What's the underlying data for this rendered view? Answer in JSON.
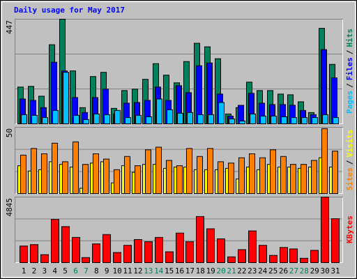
{
  "chart_data": [
    {
      "type": "bar",
      "title": "Daily usage for May 2017",
      "ylim": [
        0,
        447
      ],
      "yticks": [
        447
      ],
      "grid": true,
      "series": [
        {
          "name": "Pages",
          "color": "#00c0ff",
          "values": [
            39,
            36,
            27,
            57,
            220,
            36,
            18,
            42,
            39,
            57,
            27,
            36,
            30,
            106,
            60,
            45,
            48,
            39,
            39,
            91,
            21,
            12,
            42,
            33,
            33,
            30,
            27,
            27,
            27,
            39,
            27
          ]
        },
        {
          "name": "Files",
          "color": "#0000ff",
          "values": [
            106,
            100,
            69,
            263,
            226,
            112,
            48,
            112,
            148,
            42,
            88,
            91,
            100,
            157,
            100,
            163,
            133,
            248,
            260,
            127,
            33,
            79,
            130,
            88,
            82,
            82,
            79,
            57,
            39,
            317,
            196
          ]
        },
        {
          "name": "Hits",
          "color": "#00805c",
          "values": [
            157,
            160,
            118,
            338,
            447,
            226,
            69,
            202,
            220,
            66,
            142,
            148,
            190,
            257,
            208,
            175,
            266,
            344,
            329,
            278,
            42,
            69,
            178,
            142,
            142,
            127,
            124,
            94,
            48,
            408,
            254
          ]
        }
      ]
    },
    {
      "type": "bar",
      "ylim": [
        0,
        50
      ],
      "yticks": [
        50
      ],
      "grid": true,
      "series": [
        {
          "name": "Sites",
          "color": "#ff8000",
          "values": [
            29,
            34,
            30,
            38,
            24,
            39,
            22,
            30,
            26,
            18,
            28,
            21,
            33,
            35,
            25,
            21,
            34,
            28,
            34,
            24,
            23,
            27,
            30,
            27,
            33,
            28,
            22,
            22,
            25,
            49,
            32
          ]
        },
        {
          "name": "Visits",
          "color": "#ffff00",
          "values": [
            21,
            17,
            18,
            24,
            22,
            20,
            4,
            23,
            24,
            8,
            21,
            16,
            22,
            22,
            19,
            20,
            20,
            18,
            18,
            18,
            19,
            11,
            20,
            18,
            22,
            20,
            20,
            19,
            20,
            27,
            20
          ]
        }
      ]
    },
    {
      "type": "bar",
      "ylim": [
        0,
        4845
      ],
      "yticks": [
        4845
      ],
      "grid": true,
      "categories": [
        "1",
        "2",
        "3",
        "4",
        "5",
        "6",
        "7",
        "8",
        "9",
        "10",
        "11",
        "12",
        "13",
        "14",
        "15",
        "16",
        "17",
        "18",
        "19",
        "20",
        "21",
        "22",
        "23",
        "24",
        "25",
        "26",
        "27",
        "28",
        "29",
        "30",
        "31"
      ],
      "category_colors": [
        "#000000",
        "#000000",
        "#000000",
        "#000000",
        "#000000",
        "#00805c",
        "#00805c",
        "#000000",
        "#000000",
        "#000000",
        "#000000",
        "#000000",
        "#00805c",
        "#00805c",
        "#000000",
        "#000000",
        "#000000",
        "#000000",
        "#000000",
        "#00805c",
        "#00805c",
        "#000000",
        "#000000",
        "#000000",
        "#000000",
        "#000000",
        "#00805c",
        "#00805c",
        "#000000",
        "#000000",
        "#000000"
      ],
      "series": [
        {
          "name": "KBytes",
          "color": "#ff0000",
          "values": [
            1224,
            1330,
            585,
            3193,
            2661,
            1862,
            372,
            1383,
            2075,
            745,
            1277,
            1703,
            1543,
            1862,
            798,
            2182,
            1543,
            3406,
            2500,
            1756,
            426,
            958,
            2342,
            1277,
            532,
            1117,
            1011,
            319,
            905,
            4845,
            3246
          ]
        }
      ]
    }
  ],
  "legend_separator": "/"
}
